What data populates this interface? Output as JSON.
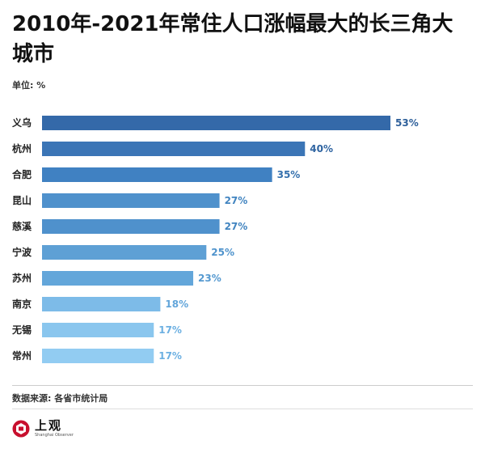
{
  "header": {
    "title": "2010年-2021年常住人口涨幅最大的长三角大城市",
    "unit": "单位: %"
  },
  "chart_data": {
    "type": "bar",
    "orientation": "horizontal",
    "title": "2010年-2021年常住人口涨幅最大的长三角大城市",
    "unit": "%",
    "categories": [
      "义乌",
      "杭州",
      "合肥",
      "昆山",
      "慈溪",
      "宁波",
      "苏州",
      "南京",
      "无锡",
      "常州"
    ],
    "values": [
      53,
      40,
      35,
      27,
      27,
      25,
      23,
      18,
      17,
      17
    ],
    "value_labels": [
      "53%",
      "40%",
      "35%",
      "27%",
      "27%",
      "25%",
      "23%",
      "18%",
      "17%",
      "17%"
    ],
    "xlim": [
      0,
      55
    ],
    "bar_colors": [
      "#3469a9",
      "#3b75b6",
      "#4081c2",
      "#4f91cc",
      "#4f91cc",
      "#5ea0d5",
      "#63a6da",
      "#7dbbe8",
      "#8ac6ee",
      "#92ccf2"
    ],
    "label_colors": [
      "#2d5f9a",
      "#2f64a1",
      "#3570ad",
      "#4184c0",
      "#4184c0",
      "#4f93cc",
      "#5599d0",
      "#62a5da",
      "#6cb0e2",
      "#6cb0e2"
    ],
    "grid": false,
    "legend": "none"
  },
  "footer": {
    "source": "数据来源: 各省市统计局",
    "logo_name": "上观",
    "logo_sub": "Shanghai Observer"
  }
}
